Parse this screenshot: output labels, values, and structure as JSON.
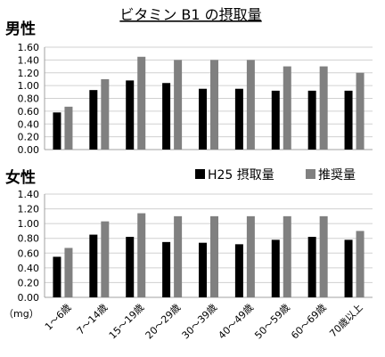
{
  "chart_data": {
    "type": "bar",
    "title": "ビタミン B1 の摂取量",
    "unit_label": "（mg）",
    "categories": [
      "1～6歳",
      "7～14歳",
      "15～19歳",
      "20～29歳",
      "30～39歳",
      "40～49歳",
      "50～59歳",
      "60～69歳",
      "70歳以上"
    ],
    "legend": {
      "placement": "between-panels-right"
    },
    "colors": {
      "intake": "#000000",
      "recommended": "#808080",
      "grid": "#d0d0d0",
      "axis": "#a0a0a0"
    },
    "panels": [
      {
        "label": "男性",
        "ylim": [
          0,
          1.6
        ],
        "yticks": [
          "0.00",
          "0.20",
          "0.40",
          "0.60",
          "0.80",
          "1.00",
          "1.20",
          "1.40",
          "1.60"
        ],
        "series": [
          {
            "name": "H25 摂取量",
            "values": [
              0.58,
              0.93,
              1.08,
              1.04,
              0.95,
              0.95,
              0.92,
              0.92,
              0.92
            ]
          },
          {
            "name": "推奨量",
            "values": [
              0.67,
              1.1,
              1.45,
              1.4,
              1.4,
              1.4,
              1.3,
              1.3,
              1.2
            ]
          }
        ]
      },
      {
        "label": "女性",
        "ylim": [
          0,
          1.4
        ],
        "yticks": [
          "0.00",
          "0.20",
          "0.40",
          "0.60",
          "0.80",
          "1.00",
          "1.20",
          "1.40"
        ],
        "series": [
          {
            "name": "H25 摂取量",
            "values": [
              0.55,
              0.85,
              0.82,
              0.75,
              0.74,
              0.72,
              0.78,
              0.82,
              0.78
            ]
          },
          {
            "name": "推奨量",
            "values": [
              0.67,
              1.03,
              1.14,
              1.1,
              1.1,
              1.1,
              1.1,
              1.1,
              0.9
            ]
          }
        ]
      }
    ]
  }
}
